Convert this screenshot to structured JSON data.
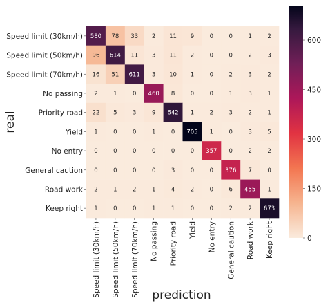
{
  "chart_data": {
    "type": "heatmap",
    "title": "",
    "xlabel": "prediction",
    "ylabel": "real",
    "rows": [
      "Speed limit (30km/h)",
      "Speed limit (50km/h)",
      "Speed limit (70km/h)",
      "No passing",
      "Priority road",
      "Yield",
      "No entry",
      "General caution",
      "Road work",
      "Keep right"
    ],
    "columns": [
      "Speed limit (30km/h)",
      "Speed limit (50km/h)",
      "Speed limit (70km/h)",
      "No passing",
      "Priority road",
      "Yield",
      "No entry",
      "General caution",
      "Road work",
      "Keep right"
    ],
    "values": [
      [
        580,
        78,
        33,
        2,
        11,
        9,
        0,
        0,
        1,
        2
      ],
      [
        96,
        614,
        11,
        3,
        11,
        2,
        0,
        0,
        2,
        3
      ],
      [
        16,
        51,
        611,
        3,
        10,
        1,
        0,
        2,
        3,
        2
      ],
      [
        2,
        1,
        0,
        460,
        8,
        0,
        0,
        1,
        3,
        1
      ],
      [
        22,
        5,
        3,
        9,
        642,
        1,
        2,
        3,
        2,
        1
      ],
      [
        1,
        0,
        0,
        1,
        0,
        705,
        1,
        0,
        3,
        5
      ],
      [
        0,
        0,
        0,
        0,
        0,
        0,
        357,
        0,
        2,
        2
      ],
      [
        0,
        0,
        0,
        0,
        3,
        0,
        0,
        376,
        7,
        0
      ],
      [
        2,
        1,
        2,
        1,
        4,
        2,
        0,
        6,
        455,
        1
      ],
      [
        1,
        0,
        0,
        1,
        1,
        0,
        0,
        2,
        2,
        673
      ]
    ],
    "colorbar": {
      "min": 0,
      "max": 705,
      "ticks": [
        0,
        150,
        300,
        450,
        600
      ],
      "colormap": "rocket_r"
    }
  }
}
